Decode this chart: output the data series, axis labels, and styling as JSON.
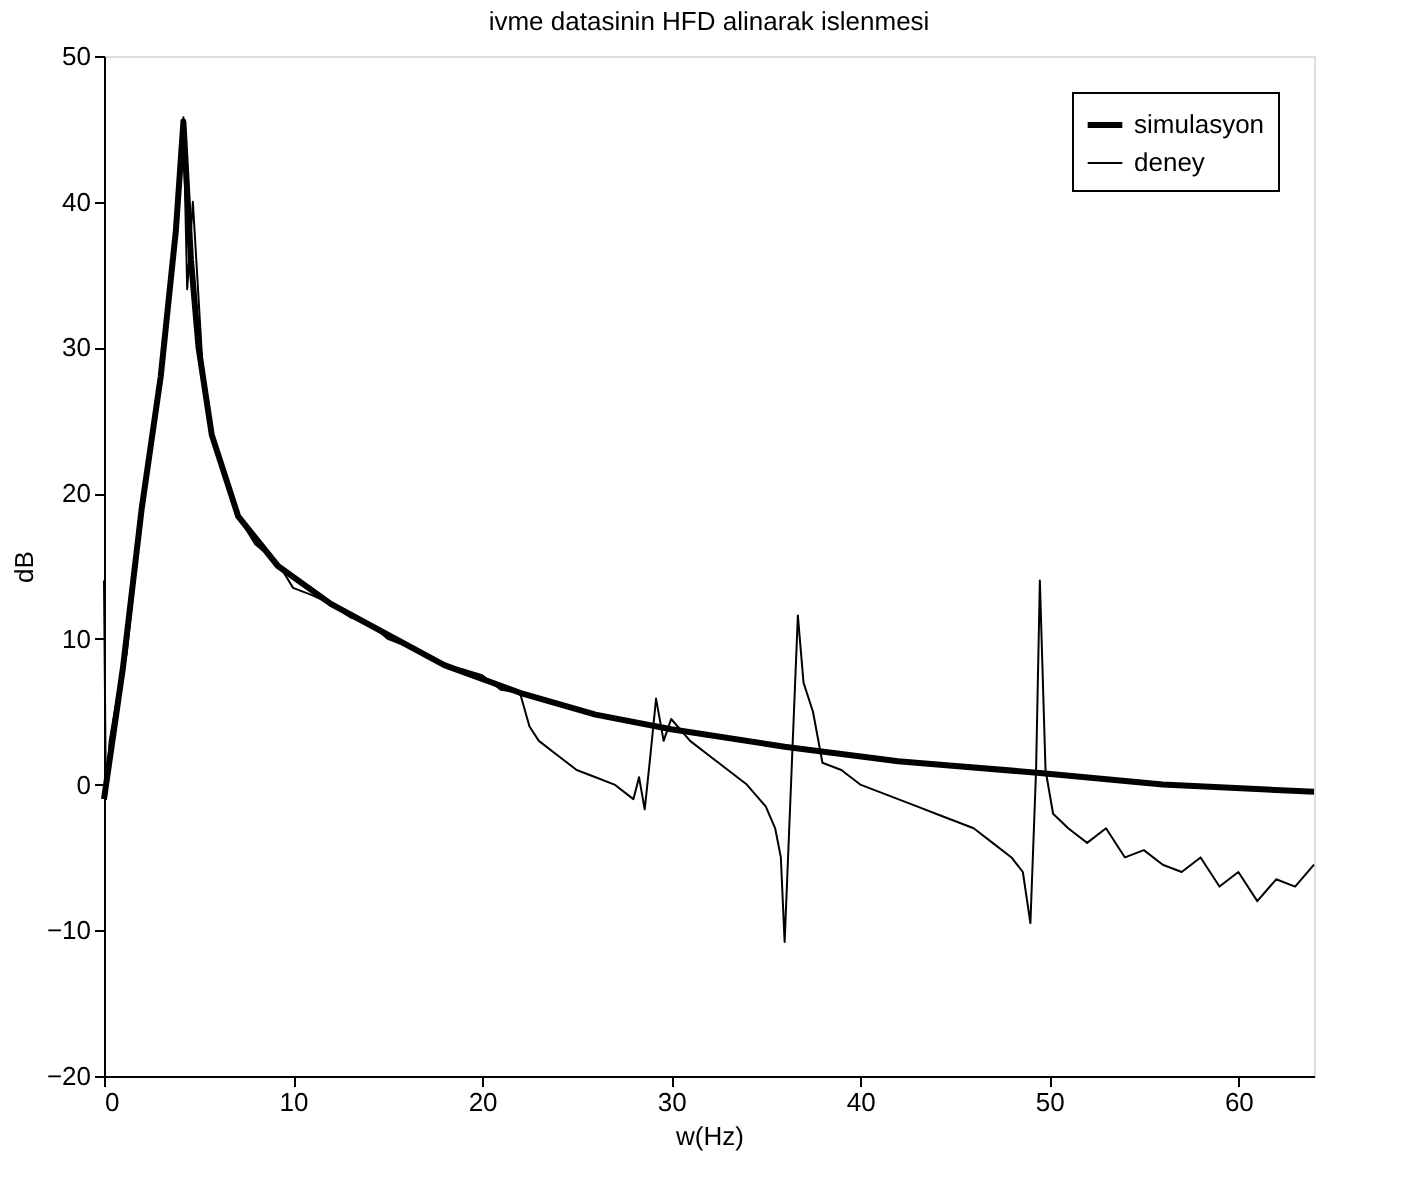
{
  "chart_data": {
    "type": "line",
    "title": "ivme datasinin HFD alinarak islenmesi",
    "xlabel": "w(Hz)",
    "ylabel": "dB",
    "xlim": [
      0,
      64
    ],
    "xticks": [
      0,
      10,
      20,
      30,
      40,
      50,
      60
    ],
    "ylim": [
      -20,
      50
    ],
    "yticks": [
      -20,
      -10,
      0,
      10,
      20,
      30,
      40,
      50
    ],
    "grid": false,
    "legend": "top right",
    "series": [
      {
        "name": "simulasyon",
        "color": "#000000",
        "x": [
          0,
          1,
          2,
          3,
          3.8,
          4.2,
          4.6,
          5,
          5.7,
          7.1,
          9.2,
          12,
          14,
          18,
          22,
          26,
          30,
          36,
          42,
          49.5,
          56,
          64
        ],
        "values": [
          -1,
          8,
          19,
          28,
          38,
          45.5,
          36,
          30,
          24,
          18.4,
          15,
          12.4,
          11,
          8.2,
          6.3,
          4.8,
          3.8,
          2.6,
          1.6,
          0.8,
          0,
          -0.5
        ]
      },
      {
        "name": "deney",
        "color": "#000000",
        "x": [
          0,
          0.1,
          0.3,
          0.7,
          1.2,
          2.1,
          3,
          3.6,
          4,
          4.2,
          4.4,
          4.7,
          5.2,
          5.7,
          7.1,
          8,
          9.2,
          10,
          11,
          12,
          13,
          14.1,
          15,
          16,
          17,
          18,
          19,
          20,
          21,
          22,
          22.5,
          23,
          24,
          25,
          26,
          27,
          28,
          28.3,
          28.6,
          28.9,
          29.2,
          29.6,
          30,
          31,
          32,
          33,
          34,
          35,
          35.5,
          35.8,
          36,
          36.7,
          37,
          37.5,
          38,
          39,
          40,
          41,
          42,
          43,
          44,
          45,
          46,
          47,
          48,
          48.6,
          49,
          49.3,
          49.5,
          49.8,
          50.2,
          51,
          52,
          53,
          54,
          55,
          56,
          57,
          58,
          59,
          60,
          61,
          62,
          63,
          64
        ],
        "values": [
          14,
          -1,
          3,
          6,
          9,
          19.8,
          28,
          36,
          42,
          45.8,
          34,
          40,
          29,
          24.3,
          18.4,
          16.5,
          15.2,
          13.5,
          13,
          12.4,
          11.5,
          11,
          10,
          9.5,
          9,
          8.2,
          7.9,
          7.5,
          6.5,
          6.3,
          4,
          3,
          2,
          1,
          0.5,
          0,
          -1,
          0.5,
          -1.7,
          2,
          5.9,
          3,
          4.5,
          3,
          2,
          1,
          0,
          -1.5,
          -3,
          -5,
          -10.8,
          11.6,
          7,
          5,
          1.5,
          1,
          0,
          -0.5,
          -1,
          -1.5,
          -2,
          -2.5,
          -3,
          -4,
          -5,
          -6,
          -9.5,
          1,
          14,
          1,
          -2,
          -3,
          -4,
          -3,
          -5,
          -4.5,
          -5.5,
          -6,
          -5,
          -7,
          -6,
          -8,
          -6.5,
          -7,
          -5.5
        ]
      }
    ]
  }
}
